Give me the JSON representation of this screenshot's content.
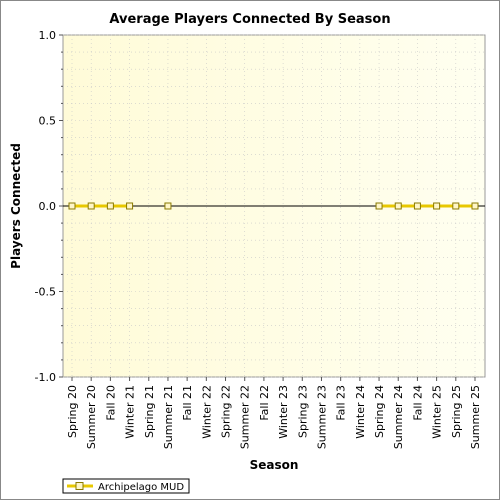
{
  "chart_data": {
    "type": "line",
    "title": "Average Players Connected By Season",
    "xlabel": "Season",
    "ylabel": "Players Connected",
    "ylim": [
      -1.0,
      1.0
    ],
    "yticks": [
      "1.0",
      "0.5",
      "0.0",
      "-0.5",
      "-1.0"
    ],
    "categories": [
      "Spring 20",
      "Summer 20",
      "Fall 20",
      "Winter 21",
      "Spring 21",
      "Summer 21",
      "Fall 21",
      "Winter 22",
      "Spring 22",
      "Summer 22",
      "Fall 22",
      "Winter 23",
      "Spring 23",
      "Summer 23",
      "Fall 23",
      "Winter 24",
      "Spring 24",
      "Summer 24",
      "Fall 24",
      "Winter 25",
      "Spring 25",
      "Summer 25"
    ],
    "series": [
      {
        "name": "Archipelago MUD",
        "color": "#e8c800",
        "marker_fill": "#fff6c8",
        "values": [
          0,
          0,
          0,
          0,
          null,
          0,
          null,
          null,
          null,
          null,
          null,
          null,
          null,
          null,
          null,
          null,
          0,
          0,
          0,
          0,
          0,
          0
        ]
      }
    ],
    "grid": true,
    "legend_position": "bottom-left",
    "plot_background": "#fffde0"
  }
}
